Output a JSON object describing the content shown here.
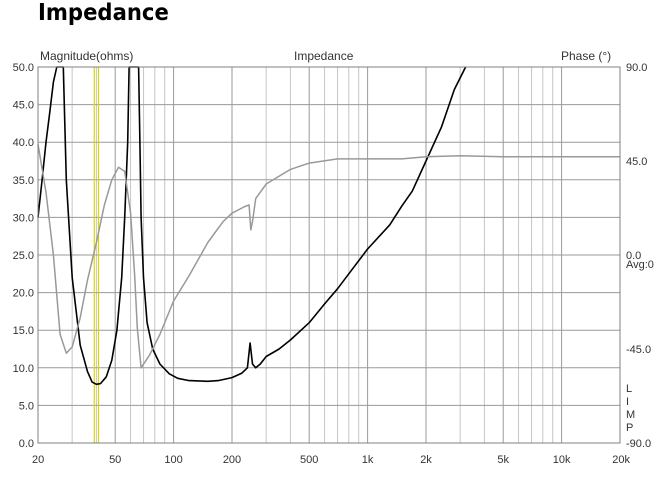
{
  "page": {
    "title": "Impedance"
  },
  "header": {
    "left_label": "Magnitude(ohms)",
    "center_label": "Impedance",
    "right_label": "Phase (°)"
  },
  "side_labels": {
    "avg": "Avg:0",
    "limp": [
      "L",
      "I",
      "M",
      "P"
    ]
  },
  "colors": {
    "magnitude": "#000000",
    "phase": "#999999",
    "marker": "#d8d800",
    "grid_major": "#9a9a9a",
    "grid_minor": "#c6c6c6",
    "frame": "#808080"
  },
  "chart_data": {
    "type": "line",
    "title": "Impedance",
    "x_scale": "log",
    "xlim": [
      20,
      20000
    ],
    "ylim_left": [
      0,
      50
    ],
    "ylim_right": [
      -90,
      90
    ],
    "xlabel": "",
    "ylabel_left": "Magnitude(ohms)",
    "ylabel_right": "Phase (°)",
    "grid": true,
    "x_ticks": [
      {
        "v": 20,
        "label": "20"
      },
      {
        "v": 50,
        "label": "50"
      },
      {
        "v": 100,
        "label": "100"
      },
      {
        "v": 200,
        "label": "200"
      },
      {
        "v": 500,
        "label": "500"
      },
      {
        "v": 1000,
        "label": "1k"
      },
      {
        "v": 2000,
        "label": "2k"
      },
      {
        "v": 5000,
        "label": "5k"
      },
      {
        "v": 10000,
        "label": "10k"
      },
      {
        "v": 20000,
        "label": "20k"
      }
    ],
    "y_left_ticks": [
      {
        "v": 50,
        "label": "50.0"
      },
      {
        "v": 45,
        "label": "45.0"
      },
      {
        "v": 40,
        "label": "40.0"
      },
      {
        "v": 35,
        "label": "35.0"
      },
      {
        "v": 30,
        "label": "30.0"
      },
      {
        "v": 25,
        "label": "25.0"
      },
      {
        "v": 20,
        "label": "20.0"
      },
      {
        "v": 15,
        "label": "15.0"
      },
      {
        "v": 10,
        "label": "10.0"
      },
      {
        "v": 5,
        "label": "5.0"
      },
      {
        "v": 0,
        "label": "0.0"
      }
    ],
    "y_right_ticks": [
      {
        "v": 90,
        "label": "90.0"
      },
      {
        "v": 45,
        "label": "45.0"
      },
      {
        "v": 0,
        "label": "0.0"
      },
      {
        "v": -45,
        "label": "-45.0"
      },
      {
        "v": -90,
        "label": "-90.0"
      }
    ],
    "marker_frequencies": [
      39,
      41
    ],
    "series": [
      {
        "axis": "left",
        "points": [
          [
            20,
            30
          ],
          [
            21,
            35
          ],
          [
            22,
            40
          ],
          [
            23,
            44
          ],
          [
            24,
            48
          ],
          [
            25,
            50
          ],
          [
            27,
            50
          ],
          [
            28,
            35
          ],
          [
            30,
            22
          ],
          [
            33,
            13
          ],
          [
            36,
            9.5
          ],
          [
            38,
            8.1
          ],
          [
            40,
            7.8
          ],
          [
            42,
            7.9
          ],
          [
            45,
            8.8
          ],
          [
            48,
            11
          ],
          [
            51,
            15
          ],
          [
            54,
            22
          ],
          [
            56,
            30
          ],
          [
            58,
            40
          ],
          [
            59,
            50
          ],
          [
            66,
            50
          ],
          [
            67,
            40
          ],
          [
            68,
            30
          ],
          [
            70,
            22
          ],
          [
            73,
            16
          ],
          [
            78,
            12.5
          ],
          [
            85,
            10.5
          ],
          [
            95,
            9.2
          ],
          [
            105,
            8.6
          ],
          [
            120,
            8.3
          ],
          [
            150,
            8.2
          ],
          [
            170,
            8.3
          ],
          [
            200,
            8.7
          ],
          [
            225,
            9.3
          ],
          [
            240,
            10
          ],
          [
            248,
            13.3
          ],
          [
            255,
            10.5
          ],
          [
            265,
            10
          ],
          [
            280,
            10.5
          ],
          [
            300,
            11.5
          ],
          [
            350,
            12.5
          ],
          [
            400,
            13.7
          ],
          [
            500,
            16
          ],
          [
            600,
            18.5
          ],
          [
            700,
            20.5
          ],
          [
            800,
            22.5
          ],
          [
            1000,
            25.8
          ],
          [
            1300,
            29
          ],
          [
            1500,
            31.5
          ],
          [
            1700,
            33.5
          ],
          [
            2000,
            37.5
          ],
          [
            2400,
            42
          ],
          [
            2800,
            47
          ],
          [
            3200,
            50
          ]
        ]
      },
      {
        "axis": "right",
        "points": [
          [
            20,
            53
          ],
          [
            22,
            30
          ],
          [
            24,
            0
          ],
          [
            26,
            -38
          ],
          [
            28,
            -47
          ],
          [
            30,
            -44
          ],
          [
            33,
            -30
          ],
          [
            36,
            -12
          ],
          [
            40,
            6
          ],
          [
            44,
            24
          ],
          [
            48,
            36
          ],
          [
            52,
            42
          ],
          [
            56,
            40
          ],
          [
            60,
            20
          ],
          [
            63,
            -10
          ],
          [
            65,
            -35
          ],
          [
            68,
            -54
          ],
          [
            75,
            -48
          ],
          [
            85,
            -38
          ],
          [
            100,
            -22
          ],
          [
            120,
            -10
          ],
          [
            150,
            6
          ],
          [
            180,
            16
          ],
          [
            200,
            20
          ],
          [
            230,
            23
          ],
          [
            245,
            24
          ],
          [
            250,
            12
          ],
          [
            255,
            16
          ],
          [
            265,
            27
          ],
          [
            300,
            34
          ],
          [
            400,
            41
          ],
          [
            500,
            44
          ],
          [
            700,
            46
          ],
          [
            1000,
            46
          ],
          [
            1500,
            46
          ],
          [
            2000,
            47
          ],
          [
            3000,
            47.5
          ],
          [
            5000,
            47
          ],
          [
            10000,
            47
          ],
          [
            20000,
            47
          ]
        ]
      }
    ]
  }
}
